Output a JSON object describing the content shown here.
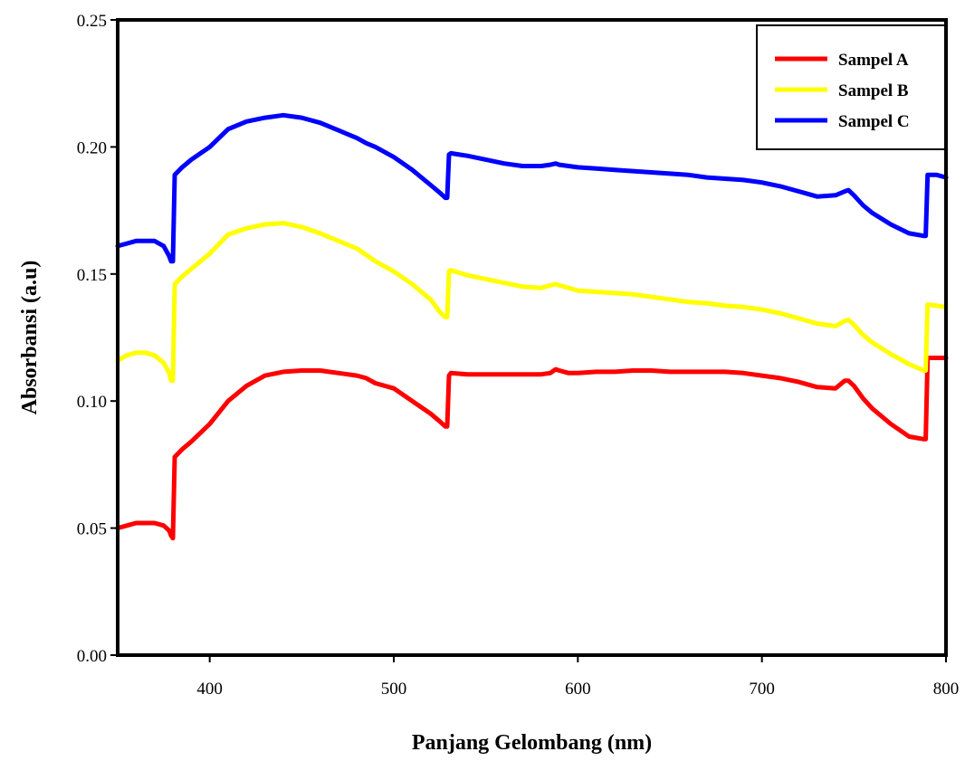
{
  "chart_data": {
    "type": "line",
    "xlabel": "Panjang Gelombang (nm)",
    "ylabel": "Absorbansi (a.u)",
    "xlim": [
      350,
      800
    ],
    "ylim": [
      0.0,
      0.25
    ],
    "xticks": [
      400,
      500,
      600,
      700,
      800
    ],
    "xtick_labels": [
      "400",
      "500",
      "600",
      "700",
      "800"
    ],
    "yticks": [
      0.0,
      0.05,
      0.1,
      0.15,
      0.2,
      0.25
    ],
    "ytick_labels": [
      "0.00",
      "0.05",
      "0.10",
      "0.15",
      "0.20",
      "0.25"
    ],
    "grid": false,
    "legend_position": "top-right",
    "series": [
      {
        "name": "Sampel A",
        "color": "#ff0000",
        "x": [
          350,
          355,
          360,
          365,
          370,
          375,
          378,
          379,
          380,
          381,
          385,
          390,
          400,
          410,
          420,
          430,
          440,
          450,
          460,
          470,
          480,
          485,
          490,
          500,
          510,
          520,
          525,
          528,
          529,
          530,
          531,
          540,
          550,
          560,
          570,
          580,
          585,
          588,
          590,
          595,
          600,
          610,
          620,
          630,
          640,
          650,
          660,
          670,
          680,
          690,
          700,
          710,
          720,
          730,
          740,
          745,
          747,
          750,
          755,
          760,
          770,
          780,
          788,
          789,
          790,
          795,
          800
        ],
        "y": [
          0.05,
          0.051,
          0.052,
          0.052,
          0.052,
          0.051,
          0.049,
          0.047,
          0.046,
          0.078,
          0.081,
          0.084,
          0.091,
          0.1,
          0.106,
          0.11,
          0.1115,
          0.112,
          0.112,
          0.111,
          0.11,
          0.109,
          0.107,
          0.105,
          0.1,
          0.095,
          0.092,
          0.09,
          0.09,
          0.11,
          0.111,
          0.1105,
          0.1105,
          0.1105,
          0.1105,
          0.1105,
          0.111,
          0.1125,
          0.112,
          0.111,
          0.111,
          0.1115,
          0.1115,
          0.112,
          0.112,
          0.1115,
          0.1115,
          0.1115,
          0.1115,
          0.111,
          0.11,
          0.109,
          0.1075,
          0.1055,
          0.105,
          0.108,
          0.108,
          0.106,
          0.101,
          0.097,
          0.091,
          0.086,
          0.085,
          0.085,
          0.117,
          0.117,
          0.117
        ]
      },
      {
        "name": "Sampel B",
        "color": "#ffff00",
        "x": [
          350,
          355,
          360,
          365,
          370,
          375,
          378,
          379,
          380,
          381,
          385,
          390,
          400,
          410,
          420,
          430,
          440,
          450,
          460,
          470,
          480,
          485,
          490,
          500,
          510,
          520,
          525,
          528,
          529,
          530,
          531,
          540,
          550,
          560,
          570,
          580,
          585,
          588,
          590,
          595,
          600,
          610,
          620,
          630,
          640,
          650,
          660,
          670,
          680,
          690,
          700,
          710,
          720,
          730,
          740,
          745,
          747,
          750,
          755,
          760,
          770,
          780,
          788,
          789,
          790,
          795,
          800
        ],
        "y": [
          0.116,
          0.118,
          0.119,
          0.119,
          0.118,
          0.115,
          0.111,
          0.108,
          0.108,
          0.146,
          0.149,
          0.152,
          0.158,
          0.1655,
          0.168,
          0.1695,
          0.17,
          0.1685,
          0.166,
          0.163,
          0.16,
          0.1575,
          0.155,
          0.151,
          0.146,
          0.14,
          0.135,
          0.133,
          0.133,
          0.151,
          0.1515,
          0.1495,
          0.148,
          0.1465,
          0.145,
          0.1445,
          0.1455,
          0.146,
          0.1455,
          0.1445,
          0.1435,
          0.143,
          0.1425,
          0.142,
          0.141,
          0.14,
          0.139,
          0.1385,
          0.1375,
          0.137,
          0.136,
          0.1345,
          0.1325,
          0.1305,
          0.1295,
          0.1315,
          0.132,
          0.13,
          0.126,
          0.123,
          0.1185,
          0.1145,
          0.112,
          0.112,
          0.138,
          0.1375,
          0.137
        ]
      },
      {
        "name": "Sampel C",
        "color": "#0000ff",
        "x": [
          350,
          355,
          360,
          365,
          370,
          375,
          378,
          379,
          380,
          381,
          385,
          390,
          400,
          410,
          420,
          430,
          440,
          450,
          460,
          470,
          480,
          485,
          490,
          500,
          510,
          520,
          525,
          528,
          529,
          530,
          531,
          540,
          550,
          560,
          570,
          580,
          585,
          588,
          590,
          595,
          600,
          610,
          620,
          630,
          640,
          650,
          660,
          670,
          680,
          690,
          700,
          710,
          720,
          730,
          740,
          745,
          747,
          750,
          755,
          760,
          770,
          780,
          788,
          789,
          790,
          795,
          800
        ],
        "y": [
          0.161,
          0.162,
          0.163,
          0.163,
          0.163,
          0.161,
          0.157,
          0.155,
          0.155,
          0.189,
          0.192,
          0.195,
          0.2,
          0.207,
          0.21,
          0.2115,
          0.2125,
          0.2115,
          0.2095,
          0.2065,
          0.2035,
          0.2015,
          0.2,
          0.196,
          0.191,
          0.185,
          0.182,
          0.18,
          0.18,
          0.197,
          0.1975,
          0.1965,
          0.195,
          0.1935,
          0.1925,
          0.1925,
          0.193,
          0.1935,
          0.193,
          0.1925,
          0.192,
          0.1915,
          0.191,
          0.1905,
          0.19,
          0.1895,
          0.189,
          0.188,
          0.1875,
          0.187,
          0.186,
          0.1845,
          0.1825,
          0.1805,
          0.181,
          0.1825,
          0.183,
          0.181,
          0.177,
          0.174,
          0.1695,
          0.166,
          0.165,
          0.165,
          0.189,
          0.189,
          0.188
        ]
      }
    ]
  }
}
